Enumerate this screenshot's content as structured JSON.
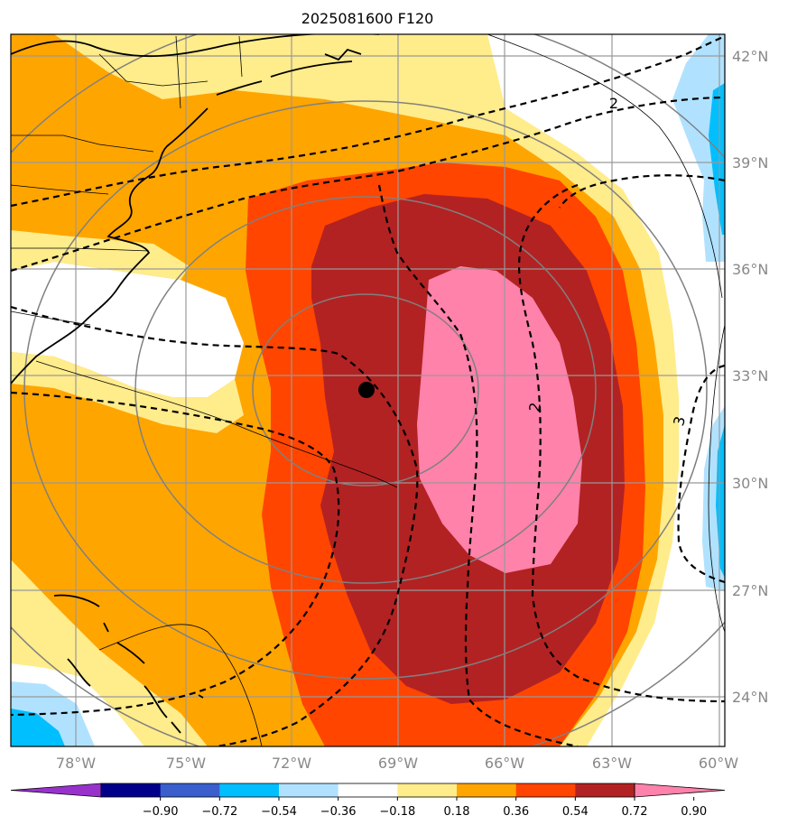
{
  "title": "2025081600 F120",
  "map": {
    "lon_labels": [
      "78°W",
      "75°W",
      "72°W",
      "69°W",
      "66°W",
      "63°W",
      "60°W"
    ],
    "lat_labels": [
      "42°N",
      "39°N",
      "36°N",
      "33°N",
      "30°N",
      "27°N",
      "24°N"
    ],
    "storm_center": {
      "lon": -69.8,
      "lat": 32.6
    },
    "contour_labels": [
      "2",
      "2",
      "3"
    ]
  },
  "colorbar": {
    "ticks": [
      "−0.90",
      "−0.72",
      "−0.54",
      "−0.36",
      "−0.18",
      "0.18",
      "0.36",
      "0.54",
      "0.72",
      "0.90"
    ],
    "colors": [
      "#9932cc",
      "#00008b",
      "#3a5fcd",
      "#00bfff",
      "#b0e2ff",
      "#ffffff",
      "#ffec8b",
      "#ffa500",
      "#ff4500",
      "#b22222",
      "#ff82ab"
    ]
  }
}
